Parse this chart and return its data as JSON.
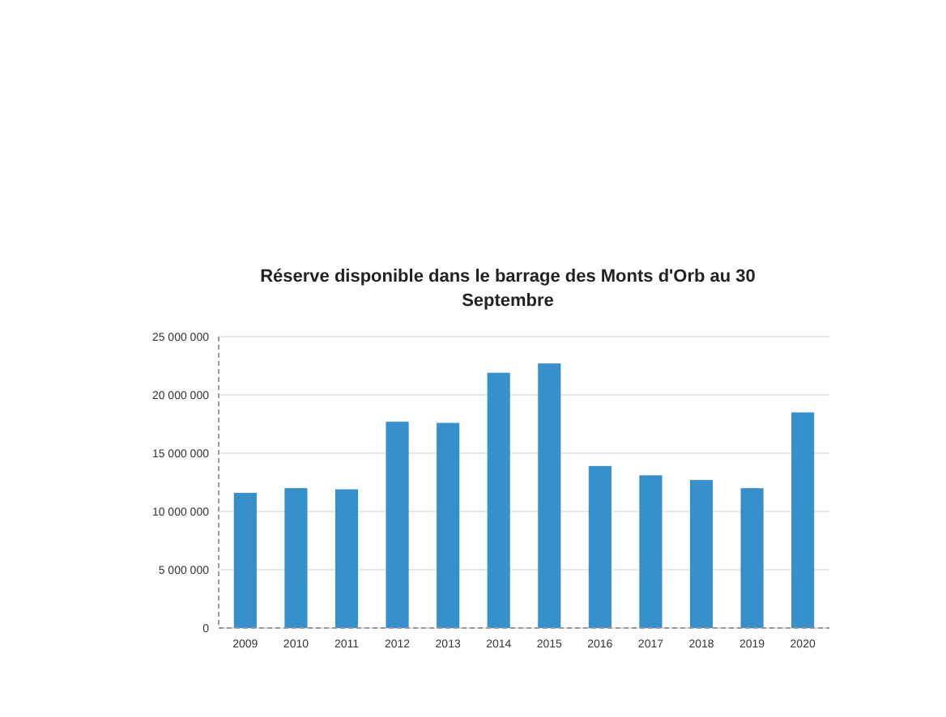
{
  "chart_data": {
    "type": "bar",
    "title": "Réserve disponible dans le barrage des Monts d'Orb au 30 Septembre",
    "categories": [
      "2009",
      "2010",
      "2011",
      "2012",
      "2013",
      "2014",
      "2015",
      "2016",
      "2017",
      "2018",
      "2019",
      "2020"
    ],
    "values": [
      11600000,
      12000000,
      11900000,
      17700000,
      17600000,
      21900000,
      22700000,
      13900000,
      13100000,
      12700000,
      12000000,
      18500000
    ],
    "color": "#3590cc",
    "ylim": [
      0,
      25000000
    ],
    "yticks": [
      {
        "value": 0,
        "label": "0"
      },
      {
        "value": 5000000,
        "label": "5 000 000"
      },
      {
        "value": 10000000,
        "label": "10 000 000"
      },
      {
        "value": 15000000,
        "label": "15 000 000"
      },
      {
        "value": 20000000,
        "label": "20 000 000"
      },
      {
        "value": 25000000,
        "label": "25 000 000"
      }
    ],
    "grid": "y"
  }
}
